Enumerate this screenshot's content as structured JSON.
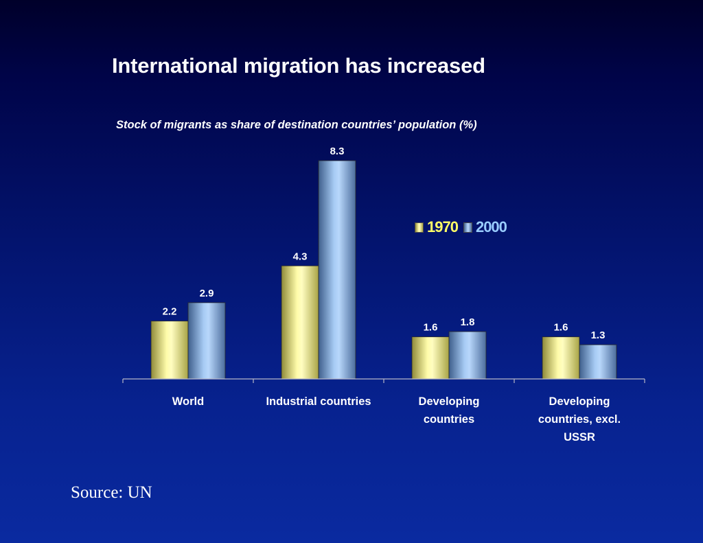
{
  "slide": {
    "title": "International migration has increased",
    "source": "Source: UN"
  },
  "chart_data": {
    "type": "bar",
    "title": "Stock of migrants as share of destination countries’ population (%)",
    "categories": [
      [
        "World"
      ],
      [
        "Industrial countries"
      ],
      [
        "Developing",
        "countries"
      ],
      [
        "Developing",
        "countries, excl.",
        "USSR"
      ]
    ],
    "series": [
      {
        "name": "1970",
        "values": [
          2.2,
          4.3,
          1.6,
          1.6
        ],
        "labels": [
          "2.2",
          "4.3",
          "1.6",
          "1.6"
        ]
      },
      {
        "name": "2000",
        "values": [
          2.9,
          8.3,
          1.8,
          1.3
        ],
        "labels": [
          "2.9",
          "8.3",
          "1.8",
          "1.3"
        ]
      }
    ],
    "ylim": [
      0,
      8.3
    ],
    "grid": false,
    "legend_position": "right",
    "colors": {
      "1970": {
        "edge": "#8f8a3a",
        "mid": "#fffcaa",
        "highlight": "#fffdc0",
        "edge_right": "#a9a446",
        "legend_text": "#ffff66"
      },
      "2000": {
        "edge": "#3f5f8c",
        "mid": "#a7cbf4",
        "highlight": "#b8d7fb",
        "edge_right": "#4c6d9d",
        "legend_text": "#99ccff"
      }
    }
  }
}
